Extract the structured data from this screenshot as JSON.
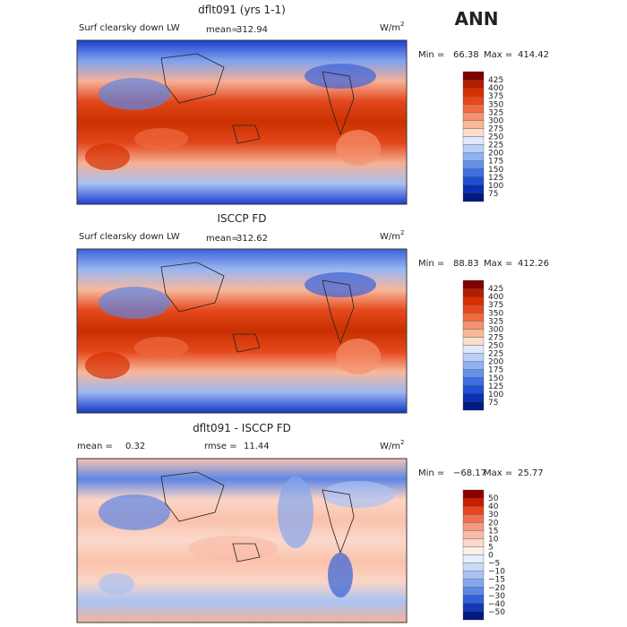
{
  "season": "ANN",
  "panels": [
    {
      "title": "dflt091 (yrs 1-1)",
      "field": "Surf clearsky down LW",
      "stat_label": "mean=",
      "stat": "312.94",
      "units": "W/m",
      "units_sup": "2",
      "min_label": "Min =",
      "min": "66.38",
      "max_label": "Max =",
      "max": "414.42",
      "levels": [
        425,
        400,
        375,
        350,
        325,
        300,
        275,
        250,
        225,
        200,
        175,
        150,
        125,
        100,
        75
      ]
    },
    {
      "title": "ISCCP FD",
      "field": "Surf clearsky down LW",
      "stat_label": "mean=",
      "stat": "312.62",
      "units": "W/m",
      "units_sup": "2",
      "min_label": "Min =",
      "min": "88.83",
      "max_label": "Max =",
      "max": "412.26",
      "levels": [
        425,
        400,
        375,
        350,
        325,
        300,
        275,
        250,
        225,
        200,
        175,
        150,
        125,
        100,
        75
      ]
    },
    {
      "title": "dflt091 - ISCCP FD",
      "field": "mean =",
      "stat_label": "rmse =",
      "stat": "11.44",
      "field_value": "0.32",
      "units": "W/m",
      "units_sup": "2",
      "min_label": "Min =",
      "min": "−68.17",
      "max_label": "Max =",
      "max": "25.77",
      "levels": [
        "50",
        "40",
        "30",
        "20",
        "15",
        "10",
        "5",
        "0",
        "−5",
        "−10",
        "−15",
        "−20",
        "−30",
        "−40",
        "−50"
      ]
    }
  ]
}
